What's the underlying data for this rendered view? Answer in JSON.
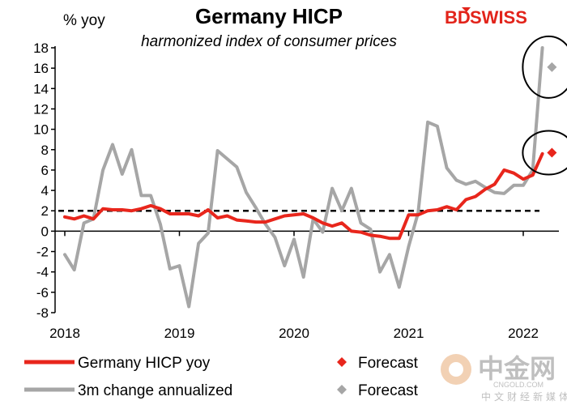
{
  "chart_data": {
    "type": "line",
    "title": "Germany HICP",
    "subtitle": "harmonized index of consumer prices",
    "ylabel": "% yoy",
    "ylim": [
      -8,
      18
    ],
    "yticks": [
      -8,
      -6,
      -4,
      -2,
      0,
      2,
      4,
      6,
      8,
      10,
      12,
      14,
      16,
      18
    ],
    "xlim": [
      2018.0,
      2022.5
    ],
    "xticks": [
      2018,
      2019,
      2020,
      2021,
      2022
    ],
    "xtick_labels": [
      "2018",
      "2019",
      "2020",
      "2021",
      "2022"
    ],
    "reference_line": {
      "y": 2,
      "style": "dashed",
      "label": ""
    },
    "series": [
      {
        "name": "Germany HICP yoy",
        "color": "#e8261c",
        "x": [
          2018.0,
          2018.083,
          2018.167,
          2018.25,
          2018.333,
          2018.417,
          2018.5,
          2018.583,
          2018.667,
          2018.75,
          2018.833,
          2018.917,
          2019.0,
          2019.083,
          2019.167,
          2019.25,
          2019.333,
          2019.417,
          2019.5,
          2019.583,
          2019.667,
          2019.75,
          2019.833,
          2019.917,
          2020.0,
          2020.083,
          2020.167,
          2020.25,
          2020.333,
          2020.417,
          2020.5,
          2020.583,
          2020.667,
          2020.75,
          2020.833,
          2020.917,
          2021.0,
          2021.083,
          2021.167,
          2021.25,
          2021.333,
          2021.417,
          2021.5,
          2021.583,
          2021.667,
          2021.75,
          2021.833,
          2021.917,
          2022.0,
          2022.083,
          2022.167
        ],
        "values": [
          1.4,
          1.2,
          1.5,
          1.2,
          2.2,
          2.1,
          2.1,
          2.0,
          2.2,
          2.5,
          2.2,
          1.7,
          1.7,
          1.7,
          1.5,
          2.1,
          1.3,
          1.5,
          1.1,
          1.0,
          0.9,
          0.9,
          1.2,
          1.5,
          1.6,
          1.7,
          1.3,
          0.8,
          0.5,
          0.8,
          0.0,
          -0.1,
          -0.4,
          -0.5,
          -0.7,
          -0.7,
          1.6,
          1.6,
          2.0,
          2.1,
          2.4,
          2.1,
          3.1,
          3.4,
          4.1,
          4.6,
          6.0,
          5.7,
          5.1,
          5.5,
          7.6
        ]
      },
      {
        "name": "3m change annualized",
        "color": "#a6a6a6",
        "x": [
          2018.0,
          2018.083,
          2018.167,
          2018.25,
          2018.333,
          2018.417,
          2018.5,
          2018.583,
          2018.667,
          2018.75,
          2018.833,
          2018.917,
          2019.0,
          2019.083,
          2019.167,
          2019.25,
          2019.333,
          2019.417,
          2019.5,
          2019.583,
          2019.667,
          2019.75,
          2019.833,
          2019.917,
          2020.0,
          2020.083,
          2020.167,
          2020.25,
          2020.333,
          2020.417,
          2020.5,
          2020.583,
          2020.667,
          2020.75,
          2020.833,
          2020.917,
          2021.0,
          2021.083,
          2021.167,
          2021.25,
          2021.333,
          2021.417,
          2021.5,
          2021.583,
          2021.667,
          2021.75,
          2021.833,
          2021.917,
          2022.0,
          2022.083,
          2022.167
        ],
        "values": [
          -2.3,
          -3.8,
          0.8,
          1.2,
          6.0,
          8.5,
          5.6,
          8.0,
          3.5,
          3.5,
          0.7,
          -3.7,
          -3.4,
          -7.4,
          -1.2,
          -0.2,
          7.9,
          7.1,
          6.3,
          3.8,
          2.3,
          0.7,
          -0.6,
          -3.4,
          -0.8,
          -4.5,
          1.2,
          -0.1,
          4.2,
          2.0,
          4.2,
          0.8,
          0.2,
          -4.0,
          -2.3,
          -5.5,
          -1.5,
          1.8,
          10.7,
          10.3,
          6.2,
          5.0,
          4.6,
          4.9,
          4.3,
          3.8,
          3.7,
          4.5,
          4.5,
          6.0,
          18.0
        ]
      }
    ],
    "forecasts": [
      {
        "name": "Forecast",
        "series": "Germany HICP yoy",
        "x": 2022.25,
        "value": 7.7,
        "color": "#e8261c",
        "marker": "diamond"
      },
      {
        "name": "Forecast",
        "series": "3m change annualized",
        "x": 2022.25,
        "value": 16.1,
        "color": "#a6a6a6",
        "marker": "diamond"
      }
    ],
    "annotations": [
      {
        "type": "circle",
        "around": "3m change annualized forecast"
      },
      {
        "type": "circle",
        "around": "Germany HICP yoy forecast"
      }
    ],
    "legend": {
      "position": "bottom",
      "entries": [
        {
          "label": "Germany HICP yoy",
          "kind": "line",
          "color": "#e8261c"
        },
        {
          "label": "Forecast",
          "kind": "diamond",
          "color": "#e8261c"
        },
        {
          "label": "3m change annualized",
          "kind": "line",
          "color": "#a6a6a6"
        },
        {
          "label": "Forecast",
          "kind": "diamond",
          "color": "#a6a6a6"
        }
      ]
    }
  },
  "branding": {
    "logo_bd": "BD",
    "logo_swiss": "SWISS",
    "watermark_main": "中金网",
    "watermark_sub": "CNGOLD.COM",
    "watermark_cn": "中文财经新媒体"
  }
}
